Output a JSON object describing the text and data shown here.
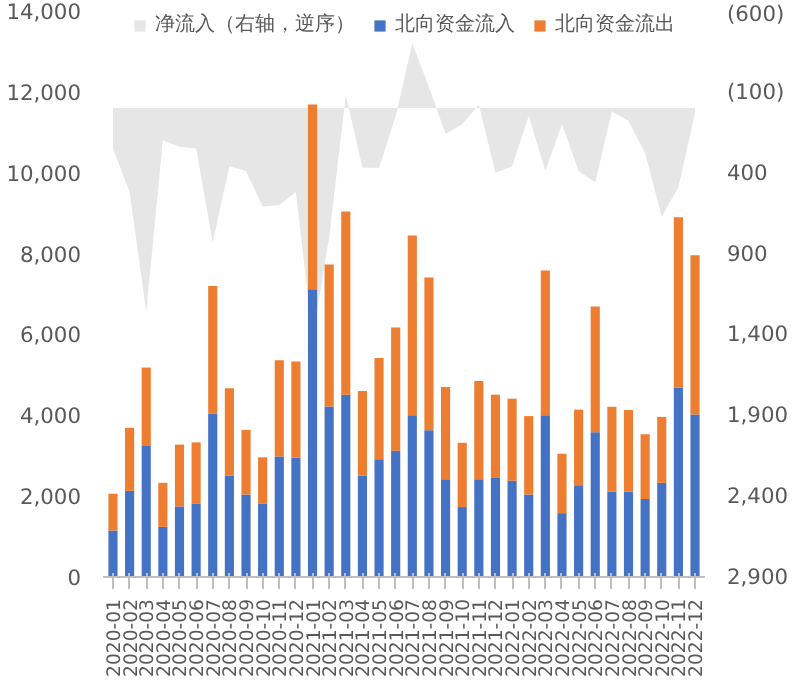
{
  "chart_data": {
    "type": "bar",
    "stacked": true,
    "legend": "top",
    "grid": false,
    "categories": [
      "2020-01",
      "2020-02",
      "2020-03",
      "2020-04",
      "2020-05",
      "2020-06",
      "2020-07",
      "2020-08",
      "2020-09",
      "2020-10",
      "2020-11",
      "2020-12",
      "2021-01",
      "2021-02",
      "2021-03",
      "2021-04",
      "2021-05",
      "2021-06",
      "2021-07",
      "2021-08",
      "2021-09",
      "2021-10",
      "2021-11",
      "2021-12",
      "2022-01",
      "2022-02",
      "2022-03",
      "2022-04",
      "2022-05",
      "2022-06",
      "2022-07",
      "2022-08",
      "2022-09",
      "2022-10",
      "2022-11",
      "2022-12"
    ],
    "ylim": [
      0,
      14000
    ],
    "yticks": [
      {
        "value": 0,
        "label": "0"
      },
      {
        "value": 2000,
        "label": "2,000"
      },
      {
        "value": 4000,
        "label": "4,000"
      },
      {
        "value": 6000,
        "label": "6,000"
      },
      {
        "value": 8000,
        "label": "8,000"
      },
      {
        "value": 10000,
        "label": "10,000"
      },
      {
        "value": 12000,
        "label": "12,000"
      },
      {
        "value": 14000,
        "label": "14,000"
      }
    ],
    "y2lim": [
      2900,
      -600
    ],
    "y2ticks": [
      {
        "value": -600,
        "label": "(600)"
      },
      {
        "value": -100,
        "label": "(100)"
      },
      {
        "value": 400,
        "label": "400"
      },
      {
        "value": 900,
        "label": "900"
      },
      {
        "value": 1400,
        "label": "1,400"
      },
      {
        "value": 1900,
        "label": "1,900"
      },
      {
        "value": 2400,
        "label": "2,400"
      },
      {
        "value": 2900,
        "label": "2,900"
      }
    ],
    "series": [
      {
        "name": "净流入（右轴，逆序）",
        "type": "area",
        "axis": "y2",
        "color": "#e7e6e6",
        "values": [
          250,
          520,
          1260,
          200,
          240,
          250,
          830,
          360,
          390,
          610,
          600,
          520,
          1420,
          800,
          -80,
          370,
          370,
          50,
          -400,
          -130,
          160,
          100,
          -20,
          400,
          360,
          50,
          390,
          100,
          390,
          460,
          20,
          80,
          280,
          670,
          490,
          30
        ]
      },
      {
        "name": "北向资金流入",
        "color": "#4472c4",
        "values": [
          1150,
          2130,
          3240,
          1240,
          1745,
          1820,
          4040,
          2510,
          2040,
          1820,
          2980,
          2950,
          7120,
          4220,
          4510,
          2510,
          2910,
          3120,
          4000,
          3630,
          2420,
          1730,
          2420,
          2450,
          2380,
          2040,
          4000,
          1580,
          2270,
          3580,
          2110,
          2110,
          1930,
          2330,
          4690,
          4020
        ]
      },
      {
        "name": "北向资金流出",
        "color": "#ed7d31",
        "values": [
          910,
          1560,
          1940,
          1090,
          1530,
          1510,
          3160,
          2160,
          1600,
          1140,
          2380,
          2380,
          4570,
          3510,
          4530,
          2090,
          2510,
          3050,
          4450,
          3780,
          2280,
          1590,
          2430,
          2060,
          2030,
          1940,
          3580,
          1470,
          1870,
          3110,
          2100,
          2020,
          1600,
          1630,
          4210,
          3940
        ]
      }
    ]
  }
}
